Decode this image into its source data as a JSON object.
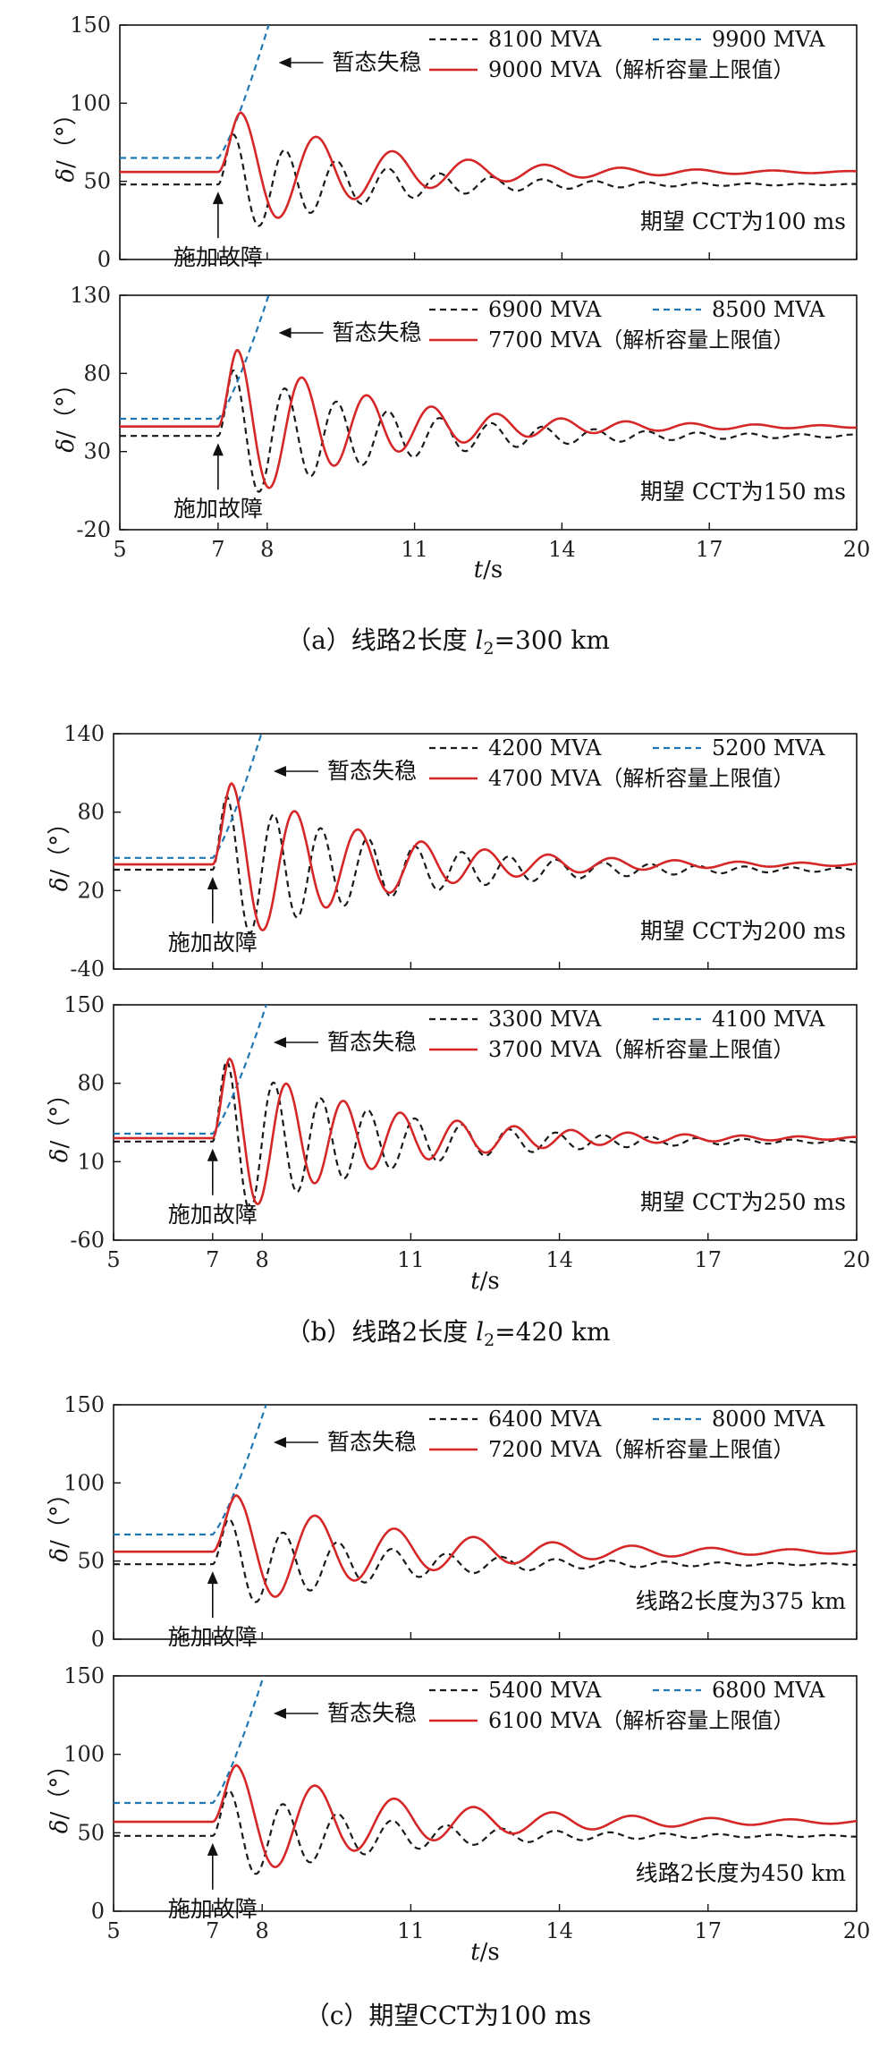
{
  "colors": {
    "black": "#1a1a1a",
    "blue": "#1f77b4",
    "red": "#d62728"
  },
  "arrows": {
    "fault": "施加故障",
    "unstable": "暂态失稳"
  },
  "captions": {
    "a_prefix": "（a）线路2长度 ",
    "a_var": "l",
    "a_sub": "2",
    "a_suffix": "=300 km",
    "b_prefix": "（b）线路2长度 ",
    "b_var": "l",
    "b_sub": "2",
    "b_suffix": "=420 km",
    "c": "（c）期望CCT为100 ms"
  },
  "axis_labels": {
    "y_var": "δ",
    "y_unit": "/（°）",
    "x_var": "t",
    "x_unit": "/s"
  },
  "chart_data": [
    {
      "type": "line",
      "title": "",
      "xlabel": "t/s",
      "ylabel": "δ/（°）",
      "xlim": [
        5,
        20
      ],
      "ylim": [
        0,
        150
      ],
      "xticks": [],
      "yticks": [
        0,
        50,
        100,
        150
      ],
      "annotation": "期望 CCT为100 ms",
      "series": [
        {
          "name": "8100 MVA",
          "style": "black",
          "initial": 48,
          "final": 48,
          "peak": 80,
          "amp": 33,
          "period": 1.05,
          "decay": 0.36
        },
        {
          "name": "9900 MVA",
          "style": "blue",
          "initial": 65,
          "unstable_to": 152,
          "t_end": 8.05
        },
        {
          "name": "9000 MVA（解析容量上限值）",
          "style": "red",
          "initial": 56,
          "final": 56,
          "peak": 94,
          "amp": 38,
          "period": 1.55,
          "decay": 0.34
        }
      ]
    },
    {
      "type": "line",
      "title": "",
      "xlabel": "t/s",
      "ylabel": "δ/（°）",
      "xlim": [
        5,
        20
      ],
      "ylim": [
        -20,
        130
      ],
      "xticks": [
        5,
        7,
        8,
        11,
        14,
        17,
        20
      ],
      "yticks": [
        -20,
        30,
        80,
        130
      ],
      "annotation": "期望 CCT为150 ms",
      "series": [
        {
          "name": "6900 MVA",
          "style": "black",
          "initial": 40,
          "final": 40,
          "peak": 82,
          "amp": 50,
          "period": 1.05,
          "decay": 0.31
        },
        {
          "name": "8500 MVA",
          "style": "blue",
          "initial": 51,
          "unstable_to": 132,
          "t_end": 8.05
        },
        {
          "name": "7700 MVA（解析容量上限值）",
          "style": "red",
          "initial": 46,
          "final": 46,
          "peak": 95,
          "amp": 55,
          "period": 1.32,
          "decay": 0.34
        }
      ]
    },
    {
      "type": "line",
      "title": "",
      "xlabel": "t/s",
      "ylabel": "δ/（°）",
      "xlim": [
        5,
        20
      ],
      "ylim": [
        -40,
        140
      ],
      "xticks": [],
      "yticks": [
        -40,
        20,
        80,
        140
      ],
      "annotation": "期望 CCT为200 ms",
      "series": [
        {
          "name": "4200 MVA",
          "style": "black",
          "initial": 36,
          "final": 36,
          "peak": 92,
          "amp": 60,
          "period": 0.95,
          "decay": 0.3
        },
        {
          "name": "5200 MVA",
          "style": "blue",
          "initial": 45,
          "unstable_to": 142,
          "t_end": 8.0
        },
        {
          "name": "4700 MVA（解析容量上限值）",
          "style": "red",
          "initial": 40,
          "final": 40,
          "peak": 102,
          "amp": 66,
          "period": 1.28,
          "decay": 0.33
        }
      ]
    },
    {
      "type": "line",
      "title": "",
      "xlabel": "t/s",
      "ylabel": "δ/（°）",
      "xlim": [
        5,
        20
      ],
      "ylim": [
        -60,
        150
      ],
      "xticks": [
        5,
        7,
        8,
        11,
        14,
        17,
        20
      ],
      "yticks": [
        -60,
        10,
        80,
        150
      ],
      "annotation": "期望 CCT为250 ms",
      "series": [
        {
          "name": "3300 MVA",
          "style": "black",
          "initial": 28,
          "final": 28,
          "peak": 100,
          "amp": 72,
          "period": 0.95,
          "decay": 0.33
        },
        {
          "name": "4100 MVA",
          "style": "blue",
          "initial": 35,
          "unstable_to": 152,
          "t_end": 8.1
        },
        {
          "name": "3700 MVA（解析容量上限值）",
          "style": "red",
          "initial": 31,
          "final": 31,
          "peak": 102,
          "amp": 76,
          "period": 1.15,
          "decay": 0.33
        }
      ]
    },
    {
      "type": "line",
      "title": "",
      "xlabel": "t/s",
      "ylabel": "δ/（°）",
      "xlim": [
        5,
        20
      ],
      "ylim": [
        0,
        150
      ],
      "xticks": [],
      "yticks": [
        0,
        50,
        100,
        150
      ],
      "annotation": "线路2长度为375 km",
      "series": [
        {
          "name": "6400 MVA",
          "style": "black",
          "initial": 48,
          "final": 48,
          "peak": 77,
          "amp": 30,
          "period": 1.1,
          "decay": 0.33
        },
        {
          "name": "8000 MVA",
          "style": "blue",
          "initial": 67,
          "unstable_to": 152,
          "t_end": 8.1
        },
        {
          "name": "7200 MVA（解析容量上限值）",
          "style": "red",
          "initial": 56,
          "final": 56,
          "peak": 92,
          "amp": 36,
          "period": 1.6,
          "decay": 0.28
        }
      ]
    },
    {
      "type": "line",
      "title": "",
      "xlabel": "t/s",
      "ylabel": "δ/（°）",
      "xlim": [
        5,
        20
      ],
      "ylim": [
        0,
        150
      ],
      "xticks": [
        5,
        7,
        8,
        11,
        14,
        17,
        20
      ],
      "yticks": [
        0,
        50,
        100,
        150
      ],
      "annotation": "线路2长度为450 km",
      "series": [
        {
          "name": "5400 MVA",
          "style": "black",
          "initial": 48,
          "final": 48,
          "peak": 77,
          "amp": 30,
          "period": 1.1,
          "decay": 0.33
        },
        {
          "name": "6800 MVA",
          "style": "blue",
          "initial": 69,
          "unstable_to": 152,
          "t_end": 8.05
        },
        {
          "name": "6100 MVA（解析容量上限值）",
          "style": "red",
          "initial": 57,
          "final": 57,
          "peak": 93,
          "amp": 36,
          "period": 1.6,
          "decay": 0.28
        }
      ]
    }
  ]
}
